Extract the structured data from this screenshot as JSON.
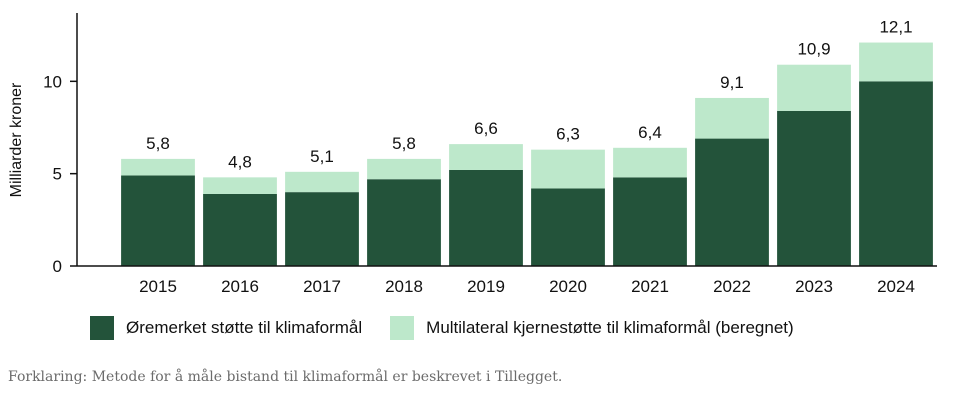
{
  "chart_data": {
    "type": "bar",
    "stacked": true,
    "categories": [
      "2015",
      "2016",
      "2017",
      "2018",
      "2019",
      "2020",
      "2021",
      "2022",
      "2023",
      "2024"
    ],
    "series": [
      {
        "name": "Øremerket støtte til klimaformål",
        "values": [
          4.9,
          3.9,
          4.0,
          4.7,
          5.2,
          4.2,
          4.8,
          6.9,
          8.4,
          10.0
        ],
        "color": "#23533a"
      },
      {
        "name": "Multilateral kjernestøtte til klimaformål (beregnet)",
        "values": [
          0.9,
          0.9,
          1.1,
          1.1,
          1.4,
          2.1,
          1.6,
          2.2,
          2.5,
          2.1
        ],
        "color": "#bde8cb"
      }
    ],
    "totals": [
      "5,8",
      "4,8",
      "5,1",
      "5,8",
      "6,6",
      "6,3",
      "6,4",
      "9,1",
      "10,9",
      "12,1"
    ],
    "ylabel": "Milliarder kroner",
    "yticks": [
      "0",
      "5",
      "10"
    ],
    "ylim": [
      0,
      13.7
    ],
    "legend_position": "bottom",
    "grid": false
  },
  "footnote": "Forklaring: Metode for å måle bistand til klimaformål er beskrevet i Tillegget."
}
